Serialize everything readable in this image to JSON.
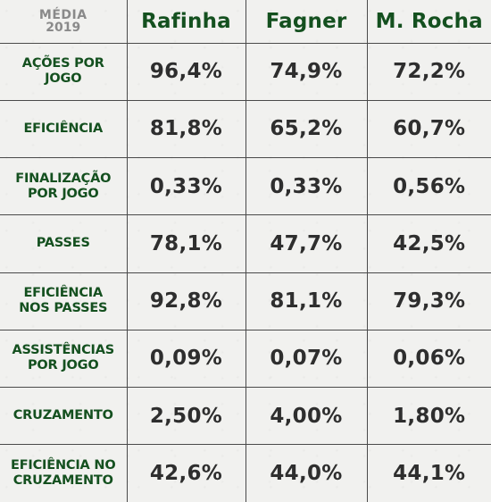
{
  "header": {
    "corner_title": "MÉDIA",
    "corner_year": "2019",
    "players": [
      "Rafinha",
      "Fagner",
      "M. Rocha"
    ]
  },
  "rows": [
    {
      "metric": "AÇÕES POR\nJOGO",
      "values": [
        "96,4%",
        "74,9%",
        "72,2%"
      ]
    },
    {
      "metric": "EFICIÊNCIA",
      "values": [
        "81,8%",
        "65,2%",
        "60,7%"
      ]
    },
    {
      "metric": "FINALIZAÇÃO\nPOR JOGO",
      "values": [
        "0,33%",
        "0,33%",
        "0,56%"
      ]
    },
    {
      "metric": "PASSES",
      "values": [
        "78,1%",
        "47,7%",
        "42,5%"
      ]
    },
    {
      "metric": "EFICIÊNCIA\nNOS PASSES",
      "values": [
        "92,8%",
        "81,1%",
        "79,3%"
      ]
    },
    {
      "metric": "ASSISTÊNCIAS\nPOR JOGO",
      "values": [
        "0,09%",
        "0,07%",
        "0,06%"
      ]
    },
    {
      "metric": "CRUZAMENTO",
      "values": [
        "2,50%",
        "4,00%",
        "1,80%"
      ]
    },
    {
      "metric": "EFICIÊNCIA NO\nCRUZAMENTO",
      "values": [
        "42,6%",
        "44,0%",
        "44,1%"
      ]
    }
  ],
  "colors": {
    "player_text": "#14501f",
    "metric_text": "#14501f",
    "value_text": "#2e2e2e",
    "corner_text": "#8a8a8a",
    "grid_lines": "#4a4a4a",
    "background": "#f1f1ef"
  }
}
